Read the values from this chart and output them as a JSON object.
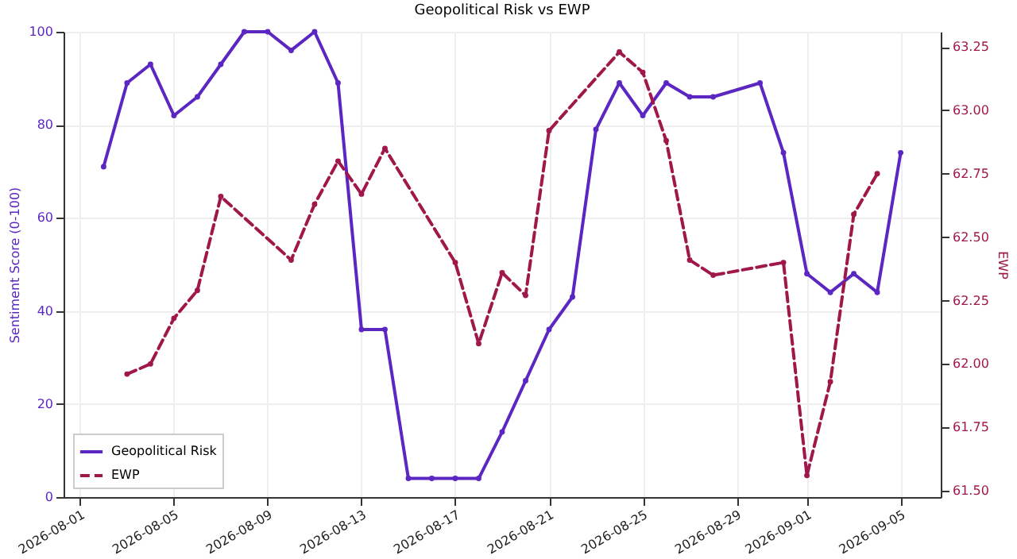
{
  "chart_data": {
    "type": "line",
    "title": "Geopolitical Risk vs EWP",
    "ylabel": "Sentiment Score (0-100)",
    "y2label": "EWP",
    "xlim": [
      "2026-07-31T07:00",
      "2026-09-06T17:00"
    ],
    "xticks": [
      "2026-08-01",
      "2026-08-05",
      "2026-08-09",
      "2026-08-13",
      "2026-08-17",
      "2026-08-21",
      "2026-08-25",
      "2026-08-29",
      "2026-09-01",
      "2026-09-05"
    ],
    "ylim": [
      0,
      100
    ],
    "yticks": [
      0,
      20,
      40,
      60,
      80,
      100
    ],
    "y2lim": [
      61.475,
      63.31
    ],
    "y2ticks": [
      {
        "value": 61.5,
        "label": "61.50"
      },
      61.75,
      {
        "value": 62.0,
        "label": "62.00"
      },
      62.25,
      {
        "value": 62.5,
        "label": "62.50"
      },
      62.75,
      {
        "value": 63.0,
        "label": "63.00"
      },
      63.25
    ],
    "grid": true,
    "legend": "bottom left",
    "marker": "circle",
    "series": [
      {
        "name": "Geopolitical Risk",
        "color": "#5c26c2",
        "line_style": "solid",
        "x": [
          "2026-08-02",
          "2026-08-03",
          "2026-08-04",
          "2026-08-05",
          "2026-08-06",
          "2026-08-07",
          "2026-08-08",
          "2026-08-09",
          "2026-08-10",
          "2026-08-11",
          "2026-08-12",
          "2026-08-13",
          "2026-08-14",
          "2026-08-15",
          "2026-08-16",
          "2026-08-17",
          "2026-08-18",
          "2026-08-19",
          "2026-08-20",
          "2026-08-21",
          "2026-08-22",
          "2026-08-23",
          "2026-08-24",
          "2026-08-25",
          "2026-08-26",
          "2026-08-27",
          "2026-08-28",
          "2026-08-30",
          "2026-08-31",
          "2026-09-01",
          "2026-09-02",
          "2026-09-03",
          "2026-09-04",
          "2026-09-05"
        ],
        "values": [
          71,
          89,
          93,
          82,
          86,
          93,
          100,
          100,
          96,
          100,
          89,
          36,
          36,
          4,
          4,
          4,
          4,
          14,
          25,
          36,
          43,
          79,
          89,
          82,
          89,
          86,
          86,
          89,
          74,
          48,
          44,
          48,
          44,
          74
        ]
      },
      {
        "name": "EWP",
        "color": "#a0174a",
        "line_style": "dashed",
        "axis": "y2",
        "x": [
          "2026-08-03",
          "2026-08-04",
          "2026-08-05",
          "2026-08-06",
          "2026-08-07",
          "2026-08-10",
          "2026-08-11",
          "2026-08-12",
          "2026-08-13",
          "2026-08-14",
          "2026-08-17",
          "2026-08-18",
          "2026-08-19",
          "2026-08-20",
          "2026-08-21",
          "2026-08-24",
          "2026-08-25",
          "2026-08-26",
          "2026-08-27",
          "2026-08-28",
          "2026-08-31",
          "2026-09-01",
          "2026-09-02",
          "2026-09-03",
          "2026-09-04"
        ],
        "values": [
          61.96,
          62.0,
          62.18,
          62.29,
          62.66,
          62.41,
          62.63,
          62.8,
          62.67,
          62.85,
          62.4,
          62.08,
          62.36,
          62.27,
          62.92,
          63.23,
          63.15,
          62.88,
          62.41,
          62.35,
          62.4,
          61.56,
          61.93,
          62.59,
          62.75
        ]
      }
    ]
  }
}
